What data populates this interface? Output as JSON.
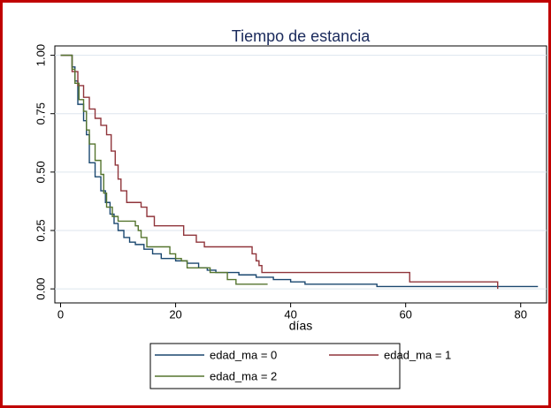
{
  "chart_data": {
    "type": "line",
    "step": true,
    "title": "Tiempo de estancia",
    "x_label": "días",
    "xlim": [
      -1,
      84.5
    ],
    "ylim": [
      -0.06,
      1.04
    ],
    "xticks": [
      0,
      20,
      40,
      60,
      80
    ],
    "yticks": [
      {
        "value": 0,
        "label": "0.00"
      },
      {
        "value": 0.25,
        "label": "0.25"
      },
      {
        "value": 0.5,
        "label": "0.50"
      },
      {
        "value": 0.75,
        "label": "0.75"
      },
      {
        "value": 1,
        "label": "1.00"
      }
    ],
    "grid": true,
    "legend": "bottom",
    "series": [
      {
        "name": "edad_ma = 0",
        "color": "#1a476f",
        "x": [
          0,
          2,
          2.5,
          3,
          4,
          4.5,
          5,
          6,
          7,
          7.8,
          8.6,
          9.3,
          10,
          11,
          12,
          13,
          14.5,
          16,
          17.5,
          20,
          22,
          24,
          25.5,
          27,
          31,
          34,
          37,
          40,
          42.5,
          55,
          83
        ],
        "values": [
          1,
          0.95,
          0.89,
          0.79,
          0.72,
          0.66,
          0.54,
          0.48,
          0.42,
          0.37,
          0.32,
          0.28,
          0.25,
          0.22,
          0.2,
          0.19,
          0.17,
          0.15,
          0.13,
          0.12,
          0.11,
          0.09,
          0.08,
          0.07,
          0.06,
          0.05,
          0.04,
          0.03,
          0.02,
          0.01,
          0.01
        ]
      },
      {
        "name": "edad_ma = 1",
        "color": "#90353b",
        "x": [
          0,
          2,
          3,
          4,
          5,
          6,
          7,
          8,
          8.8,
          9.5,
          10,
          10.5,
          11.5,
          14,
          15,
          16.3,
          21.4,
          23.6,
          25,
          33.3,
          34,
          34.5,
          35,
          60.7,
          76
        ],
        "values": [
          1,
          0.93,
          0.87,
          0.82,
          0.77,
          0.73,
          0.7,
          0.66,
          0.59,
          0.53,
          0.47,
          0.42,
          0.37,
          0.35,
          0.31,
          0.27,
          0.23,
          0.2,
          0.18,
          0.15,
          0.12,
          0.1,
          0.07,
          0.03,
          0
        ]
      },
      {
        "name": "edad_ma = 2",
        "color": "#55752f",
        "x": [
          0,
          2,
          2.5,
          3.2,
          4,
          4.5,
          5,
          6,
          7,
          7.5,
          8,
          9,
          10,
          13,
          13.5,
          14,
          15,
          19,
          20,
          21,
          22,
          26,
          29,
          30.5,
          36
        ],
        "values": [
          1,
          0.94,
          0.88,
          0.81,
          0.76,
          0.68,
          0.62,
          0.55,
          0.49,
          0.41,
          0.35,
          0.31,
          0.29,
          0.27,
          0.25,
          0.22,
          0.18,
          0.15,
          0.13,
          0.12,
          0.09,
          0.07,
          0.04,
          0.02,
          0.02
        ]
      }
    ]
  }
}
